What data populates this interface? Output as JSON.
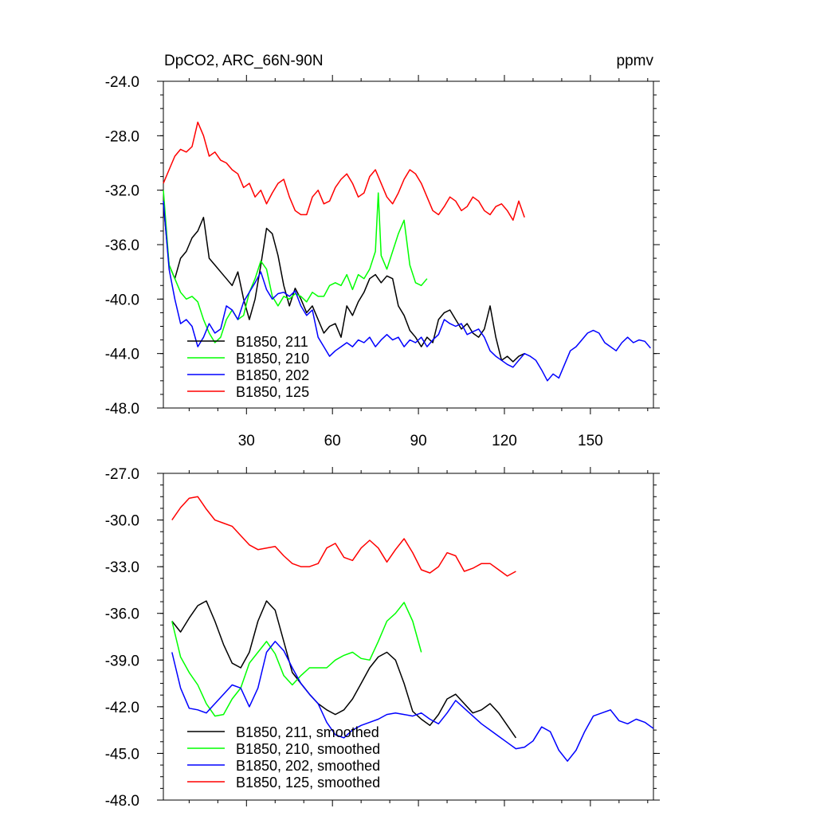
{
  "chart_data": [
    {
      "type": "line",
      "title": "DpCO2, ARC_66N-90N",
      "units": "ppmv",
      "xlabel": "",
      "ylabel": "",
      "xlim": [
        1,
        172
      ],
      "ylim": [
        -48,
        -24
      ],
      "xticks": [
        30,
        60,
        90,
        120,
        150
      ],
      "xtick_labels": [
        "30",
        "60",
        "90",
        "120",
        "150"
      ],
      "yticks": [
        -24,
        -28,
        -32,
        -36,
        -40,
        -44,
        -48
      ],
      "ytick_labels": [
        "-24.0",
        "-28.0",
        "-32.0",
        "-36.0",
        "-40.0",
        "-44.0",
        "-48.0"
      ],
      "legend_position": "bottom-left",
      "series": [
        {
          "name": "B1850, 211",
          "color": "#000000",
          "x": [
            1,
            3,
            5,
            7,
            9,
            11,
            13,
            15,
            17,
            19,
            21,
            23,
            25,
            27,
            29,
            31,
            33,
            35,
            37,
            39,
            41,
            43,
            45,
            47,
            49,
            51,
            53,
            55,
            57,
            59,
            61,
            63,
            65,
            67,
            69,
            71,
            73,
            75,
            77,
            79,
            81,
            83,
            85,
            87,
            89,
            91,
            93,
            95,
            97,
            99,
            101,
            103,
            105,
            107,
            109,
            111,
            113,
            115,
            117,
            119,
            121,
            123,
            125,
            127
          ],
          "values": [
            -33,
            -37.5,
            -38.5,
            -37,
            -36.5,
            -35.5,
            -35,
            -34,
            -37,
            -37.5,
            -38,
            -38.5,
            -39,
            -38,
            -40,
            -41.5,
            -40,
            -37.5,
            -34.8,
            -35.2,
            -36.8,
            -39,
            -40.5,
            -39.2,
            -40,
            -41,
            -40.5,
            -41.5,
            -42.5,
            -42,
            -41.8,
            -42.8,
            -40.5,
            -41.2,
            -40.2,
            -39.5,
            -38.5,
            -38.2,
            -38.8,
            -38.3,
            -38.5,
            -40.5,
            -41.2,
            -42.3,
            -42.8,
            -43.5,
            -42.8,
            -43.2,
            -41.5,
            -41,
            -40.8,
            -41.5,
            -42.2,
            -41.8,
            -42.5,
            -42.8,
            -42.2,
            -40.5,
            -42.8,
            -44.5,
            -44.2,
            -44.6,
            -44.2,
            -44
          ]
        },
        {
          "name": "B1850, 210",
          "color": "#00ff00",
          "x": [
            1,
            3,
            5,
            7,
            9,
            11,
            13,
            15,
            17,
            19,
            21,
            23,
            25,
            27,
            29,
            31,
            33,
            35,
            37,
            39,
            41,
            43,
            45,
            47,
            49,
            51,
            53,
            55,
            57,
            59,
            61,
            63,
            65,
            67,
            69,
            71,
            73,
            75,
            76,
            77,
            79,
            81,
            83,
            85,
            87,
            89,
            91,
            93
          ],
          "values": [
            -32,
            -37.5,
            -38.5,
            -39.5,
            -40,
            -39.8,
            -40.2,
            -41.5,
            -42.5,
            -43.2,
            -42.8,
            -41.5,
            -40.8,
            -41.5,
            -41.2,
            -39.5,
            -38.5,
            -37.2,
            -37.8,
            -39.8,
            -40.5,
            -39.8,
            -40,
            -39.6,
            -39.8,
            -40.2,
            -39.5,
            -39.8,
            -39.8,
            -39,
            -38.8,
            -39,
            -38.2,
            -39.3,
            -38.2,
            -38.5,
            -37.8,
            -36.5,
            -32.2,
            -36.8,
            -37.8,
            -36.5,
            -35.2,
            -34.2,
            -37.5,
            -38.8,
            -39,
            -38.5
          ]
        },
        {
          "name": "B1850, 202",
          "color": "#0000ff",
          "x": [
            1,
            3,
            5,
            7,
            9,
            11,
            13,
            15,
            17,
            19,
            21,
            23,
            25,
            27,
            29,
            31,
            33,
            35,
            37,
            39,
            41,
            43,
            45,
            47,
            49,
            51,
            53,
            55,
            57,
            59,
            61,
            63,
            65,
            67,
            69,
            71,
            73,
            75,
            77,
            79,
            81,
            83,
            85,
            87,
            89,
            91,
            93,
            95,
            97,
            99,
            101,
            103,
            105,
            107,
            109,
            111,
            113,
            115,
            117,
            119,
            121,
            123,
            125,
            127,
            129,
            131,
            133,
            135,
            137,
            139,
            141,
            143,
            145,
            147,
            149,
            151,
            153,
            155,
            157,
            159,
            161,
            163,
            165,
            167,
            169,
            171
          ],
          "values": [
            -32.8,
            -37.8,
            -40,
            -41.8,
            -41.5,
            -42,
            -43.5,
            -42.8,
            -41.8,
            -42.5,
            -42.2,
            -40.5,
            -40.8,
            -41.5,
            -40.2,
            -39.5,
            -38.8,
            -38,
            -39.3,
            -40,
            -39.6,
            -39.5,
            -39.8,
            -39.4,
            -40.5,
            -41.2,
            -40.8,
            -42.8,
            -43.5,
            -44.2,
            -43.8,
            -43.5,
            -43.2,
            -43.5,
            -43,
            -43.2,
            -42.8,
            -43.5,
            -43,
            -42.6,
            -43,
            -42.8,
            -43.5,
            -43,
            -43.2,
            -42.8,
            -43.5,
            -43,
            -42.6,
            -41.5,
            -41.8,
            -42,
            -41.8,
            -42.6,
            -42.4,
            -42.2,
            -42.8,
            -43.8,
            -44.2,
            -44.5,
            -44.8,
            -45,
            -44.5,
            -44,
            -44.2,
            -44.5,
            -45.2,
            -46,
            -45.5,
            -45.8,
            -44.8,
            -43.8,
            -43.5,
            -43,
            -42.5,
            -42.3,
            -42.5,
            -43.2,
            -43.5,
            -43.8,
            -43.2,
            -42.8,
            -43.2,
            -43,
            -43.1,
            -43.6
          ]
        },
        {
          "name": "B1850, 125",
          "color": "#ff0000",
          "x": [
            1,
            3,
            5,
            7,
            9,
            11,
            13,
            15,
            17,
            19,
            21,
            23,
            25,
            27,
            29,
            31,
            33,
            35,
            37,
            39,
            41,
            43,
            45,
            47,
            49,
            51,
            53,
            55,
            57,
            59,
            61,
            63,
            65,
            67,
            69,
            71,
            73,
            75,
            77,
            79,
            81,
            83,
            85,
            87,
            89,
            91,
            93,
            95,
            97,
            99,
            101,
            103,
            105,
            107,
            109,
            111,
            113,
            115,
            117,
            119,
            121,
            123,
            125,
            127
          ],
          "values": [
            -31.5,
            -30.5,
            -29.5,
            -29,
            -29.2,
            -28.8,
            -27,
            -28,
            -29.5,
            -29.2,
            -29.8,
            -30,
            -30.5,
            -30.8,
            -31.8,
            -31.5,
            -32.5,
            -32,
            -33,
            -32.2,
            -31.5,
            -31.2,
            -32.5,
            -33.5,
            -33.8,
            -33.8,
            -32.5,
            -32,
            -33,
            -32.8,
            -31.8,
            -31.2,
            -30.8,
            -31.5,
            -32.5,
            -32.2,
            -31,
            -30.5,
            -31.5,
            -32.5,
            -33,
            -32.2,
            -31.2,
            -30.5,
            -30.8,
            -31.5,
            -32.5,
            -33.5,
            -33.8,
            -33.2,
            -32.5,
            -32.8,
            -33.5,
            -33.2,
            -32.5,
            -32.8,
            -33.5,
            -33.8,
            -33.2,
            -33,
            -33.5,
            -34.2,
            -32.8,
            -34
          ]
        }
      ]
    },
    {
      "type": "line",
      "title": "",
      "xlabel": "",
      "ylabel": "",
      "xlim": [
        1,
        172
      ],
      "ylim": [
        -48,
        -27
      ],
      "yticks": [
        -27,
        -30,
        -33,
        -36,
        -39,
        -42,
        -45,
        -48
      ],
      "ytick_labels": [
        "-27.0",
        "-30.0",
        "-33.0",
        "-36.0",
        "-39.0",
        "-42.0",
        "-45.0",
        "-48.0"
      ],
      "legend_position": "bottom-left",
      "series": [
        {
          "name": "B1850, 211, smoothed",
          "color": "#000000",
          "x": [
            4,
            7,
            10,
            13,
            16,
            19,
            22,
            25,
            28,
            31,
            34,
            37,
            40,
            43,
            46,
            49,
            52,
            55,
            58,
            61,
            64,
            67,
            70,
            73,
            76,
            79,
            82,
            85,
            88,
            91,
            94,
            97,
            100,
            103,
            106,
            109,
            112,
            115,
            118,
            121,
            124
          ],
          "values": [
            -36.5,
            -37.2,
            -36.3,
            -35.5,
            -35.2,
            -36.5,
            -38,
            -39.2,
            -39.5,
            -38.5,
            -36.5,
            -35.2,
            -35.8,
            -37.8,
            -39.8,
            -40.5,
            -41.2,
            -41.8,
            -42.2,
            -42.5,
            -42.2,
            -41.5,
            -40.5,
            -39.5,
            -38.8,
            -38.5,
            -39,
            -40.5,
            -42.3,
            -42.8,
            -43.2,
            -42.5,
            -41.5,
            -41.2,
            -41.8,
            -42.4,
            -42.2,
            -41.8,
            -42.4,
            -43.2,
            -44
          ]
        },
        {
          "name": "B1850, 210, smoothed",
          "color": "#00ff00",
          "x": [
            4,
            7,
            10,
            13,
            16,
            19,
            22,
            25,
            28,
            31,
            34,
            37,
            40,
            43,
            46,
            49,
            52,
            55,
            58,
            61,
            64,
            67,
            70,
            73,
            76,
            79,
            82,
            85,
            88,
            91
          ],
          "values": [
            -36.5,
            -38.8,
            -39.8,
            -40.6,
            -41.8,
            -42.6,
            -42.5,
            -41.5,
            -40.8,
            -39.2,
            -38.5,
            -37.8,
            -38.6,
            -40,
            -40.6,
            -40,
            -39.5,
            -39.5,
            -39.5,
            -39,
            -38.7,
            -38.5,
            -38.9,
            -39,
            -37.8,
            -36.5,
            -36,
            -35.3,
            -36.5,
            -38.5
          ]
        },
        {
          "name": "B1850, 202, smoothed",
          "color": "#0000ff",
          "x": [
            4,
            7,
            10,
            13,
            16,
            19,
            22,
            25,
            28,
            31,
            34,
            37,
            40,
            43,
            46,
            49,
            52,
            55,
            58,
            61,
            64,
            67,
            70,
            73,
            76,
            79,
            82,
            85,
            88,
            91,
            94,
            97,
            100,
            103,
            106,
            109,
            112,
            115,
            118,
            121,
            124,
            127,
            130,
            133,
            136,
            139,
            142,
            145,
            148,
            151,
            154,
            157,
            160,
            163,
            166,
            169,
            172
          ],
          "values": [
            -38.5,
            -40.8,
            -42.1,
            -42.2,
            -42.4,
            -41.8,
            -41.2,
            -40.6,
            -40.8,
            -42,
            -40.8,
            -38.5,
            -37.8,
            -38.4,
            -39.5,
            -40.5,
            -41.2,
            -41.8,
            -43,
            -43.8,
            -44,
            -43.5,
            -43.2,
            -43,
            -42.8,
            -42.5,
            -42.4,
            -42.5,
            -42.6,
            -42.4,
            -42.8,
            -43.1,
            -42.4,
            -41.6,
            -42.1,
            -42.6,
            -43.1,
            -43.5,
            -43.9,
            -44.3,
            -44.7,
            -44.6,
            -44.2,
            -43.3,
            -43.6,
            -44.8,
            -45.5,
            -44.8,
            -43.6,
            -42.6,
            -42.4,
            -42.2,
            -42.9,
            -43.1,
            -42.8,
            -43,
            -43.4
          ]
        },
        {
          "name": "B1850, 125, smoothed",
          "color": "#ff0000",
          "x": [
            4,
            7,
            10,
            13,
            16,
            19,
            22,
            25,
            28,
            31,
            34,
            37,
            40,
            43,
            46,
            49,
            52,
            55,
            58,
            61,
            64,
            67,
            70,
            73,
            76,
            79,
            82,
            85,
            88,
            91,
            94,
            97,
            100,
            103,
            106,
            109,
            112,
            115,
            118,
            121,
            124
          ],
          "values": [
            -30,
            -29.2,
            -28.6,
            -28.5,
            -29.3,
            -30,
            -30.2,
            -30.4,
            -31,
            -31.6,
            -31.9,
            -31.8,
            -31.7,
            -32.3,
            -32.8,
            -33,
            -33,
            -32.8,
            -31.8,
            -31.5,
            -32.4,
            -32.6,
            -31.8,
            -31.3,
            -31.8,
            -32.7,
            -31.9,
            -31.2,
            -32.1,
            -33.2,
            -33.4,
            -33,
            -32.1,
            -32.3,
            -33.3,
            -33.1,
            -32.8,
            -32.8,
            -33.2,
            -33.6,
            -33.3
          ]
        }
      ]
    }
  ]
}
